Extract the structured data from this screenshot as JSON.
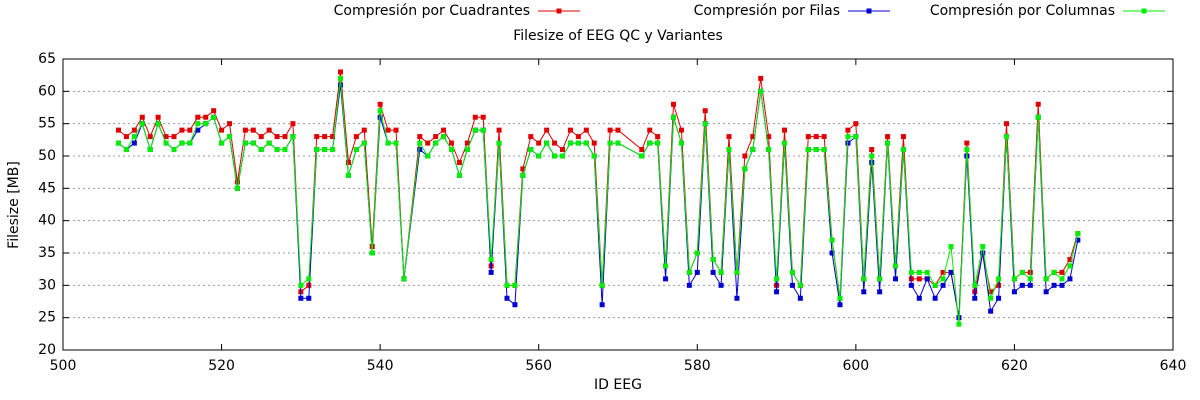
{
  "chart_data": {
    "type": "line",
    "title": "Filesize of EEG QC y Variantes",
    "xlabel": "ID EEG",
    "ylabel": "Filesize [MB]",
    "xlim": [
      500,
      640
    ],
    "xticks": [
      500,
      520,
      540,
      560,
      580,
      600,
      620,
      640
    ],
    "ylim": [
      20,
      65
    ],
    "yticks": [
      20,
      25,
      30,
      35,
      40,
      45,
      50,
      55,
      60,
      65
    ],
    "grid": true,
    "legend": "top",
    "x": [
      507,
      508,
      509,
      510,
      511,
      512,
      513,
      514,
      515,
      516,
      517,
      518,
      519,
      520,
      521,
      522,
      523,
      524,
      525,
      526,
      527,
      528,
      529,
      530,
      531,
      532,
      533,
      534,
      535,
      536,
      537,
      538,
      539,
      540,
      541,
      542,
      543,
      545,
      546,
      547,
      548,
      549,
      550,
      551,
      552,
      553,
      554,
      555,
      556,
      557,
      558,
      559,
      560,
      561,
      562,
      563,
      564,
      565,
      566,
      567,
      568,
      569,
      570,
      573,
      574,
      575,
      576,
      577,
      578,
      579,
      580,
      581,
      582,
      583,
      584,
      585,
      586,
      587,
      588,
      589,
      590,
      591,
      592,
      593,
      594,
      595,
      596,
      597,
      598,
      599,
      600,
      601,
      602,
      603,
      604,
      605,
      606,
      607,
      608,
      609,
      610,
      611,
      612,
      613,
      614,
      615,
      616,
      617,
      618,
      619,
      620,
      621,
      622,
      623,
      624,
      625,
      626,
      627,
      628
    ],
    "series": [
      {
        "name": "Compresión por Cuadrantes",
        "color": "#e00000",
        "values": [
          54,
          53,
          54,
          56,
          53,
          56,
          53,
          53,
          54,
          54,
          56,
          56,
          57,
          54,
          55,
          46,
          54,
          54,
          53,
          54,
          53,
          53,
          55,
          29,
          30,
          53,
          53,
          53,
          63,
          49,
          53,
          54,
          36,
          58,
          54,
          54,
          31,
          53,
          52,
          53,
          54,
          52,
          49,
          52,
          56,
          56,
          33,
          54,
          30,
          30,
          48,
          53,
          52,
          54,
          52,
          51,
          54,
          53,
          54,
          52,
          30,
          54,
          54,
          51,
          54,
          53,
          33,
          58,
          54,
          32,
          35,
          57,
          34,
          32,
          53,
          32,
          50,
          53,
          62,
          53,
          30,
          54,
          32,
          30,
          53,
          53,
          53,
          37,
          28,
          54,
          55,
          31,
          51,
          31,
          53,
          33,
          53,
          31,
          31,
          31,
          30,
          32,
          32,
          25,
          52,
          29,
          35,
          29,
          30,
          55,
          31,
          32,
          32,
          58,
          31,
          32,
          32,
          34,
          38
        ]
      },
      {
        "name": "Compresión por Filas",
        "color": "#0000d0",
        "values": [
          52,
          51,
          52,
          55,
          51,
          55,
          52,
          51,
          52,
          52,
          54,
          55,
          56,
          52,
          53,
          45,
          52,
          52,
          51,
          52,
          51,
          51,
          53,
          28,
          28,
          51,
          51,
          51,
          61,
          47,
          51,
          52,
          35,
          56,
          52,
          52,
          31,
          51,
          50,
          52,
          53,
          51,
          47,
          51,
          54,
          54,
          32,
          52,
          28,
          27,
          47,
          51,
          50,
          52,
          50,
          50,
          52,
          52,
          52,
          50,
          27,
          52,
          52,
          50,
          52,
          52,
          31,
          56,
          52,
          30,
          32,
          55,
          32,
          30,
          51,
          28,
          48,
          51,
          60,
          51,
          29,
          52,
          30,
          28,
          51,
          51,
          51,
          35,
          27,
          52,
          53,
          29,
          49,
          29,
          52,
          31,
          51,
          30,
          28,
          31,
          28,
          30,
          32,
          25,
          50,
          28,
          35,
          26,
          28,
          53,
          29,
          30,
          30,
          56,
          29,
          30,
          30,
          31,
          37
        ]
      },
      {
        "name": "Compresión por Columnas",
        "color": "#00ee00",
        "values": [
          52,
          51,
          53,
          55,
          51,
          55,
          52,
          51,
          52,
          52,
          55,
          55,
          56,
          52,
          53,
          45,
          52,
          52,
          51,
          52,
          51,
          51,
          53,
          30,
          31,
          51,
          51,
          51,
          62,
          47,
          51,
          52,
          35,
          57,
          52,
          52,
          31,
          52,
          50,
          52,
          53,
          51,
          47,
          51,
          54,
          54,
          34,
          52,
          30,
          30,
          47,
          51,
          50,
          52,
          50,
          50,
          52,
          52,
          52,
          50,
          30,
          52,
          52,
          50,
          52,
          52,
          33,
          56,
          52,
          32,
          35,
          55,
          34,
          32,
          51,
          32,
          48,
          51,
          60,
          51,
          31,
          52,
          32,
          30,
          51,
          51,
          51,
          37,
          28,
          53,
          53,
          31,
          50,
          31,
          52,
          33,
          51,
          32,
          32,
          32,
          30,
          31,
          36,
          24,
          51,
          30,
          36,
          28,
          31,
          53,
          31,
          32,
          31,
          56,
          31,
          32,
          31,
          33,
          38
        ]
      }
    ]
  }
}
